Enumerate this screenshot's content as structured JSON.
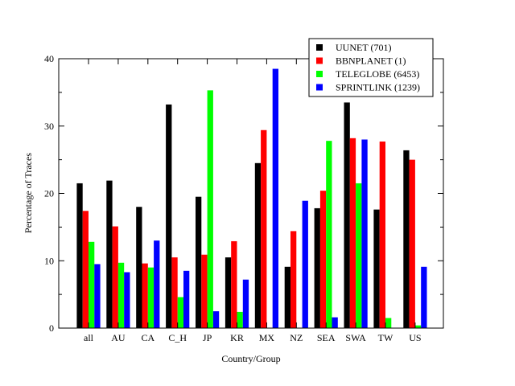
{
  "chart_data": {
    "type": "bar",
    "xlabel": "Country/Group",
    "ylabel": "Percentage of Traces",
    "ylim": [
      0,
      40
    ],
    "yticks": [
      0,
      10,
      20,
      30,
      40
    ],
    "grid": false,
    "legend_position": "top-right",
    "categories": [
      "all",
      "AU",
      "CA",
      "C_H",
      "JP",
      "KR",
      "MX",
      "NZ",
      "SEA",
      "SWA",
      "TW",
      "US"
    ],
    "series": [
      {
        "name": "UUNET (701)",
        "color": "#000000",
        "values": [
          21.5,
          21.9,
          18.0,
          33.2,
          19.5,
          10.5,
          24.5,
          9.1,
          17.8,
          33.5,
          17.6,
          26.4
        ]
      },
      {
        "name": "BBNPLANET (1)",
        "color": "#ff0000",
        "values": [
          17.4,
          15.1,
          9.6,
          10.5,
          10.9,
          12.9,
          29.4,
          14.4,
          20.4,
          28.2,
          27.7,
          25.0
        ]
      },
      {
        "name": "TELEGLOBE (6453)",
        "color": "#00ff00",
        "values": [
          12.8,
          9.7,
          9.0,
          4.6,
          35.3,
          2.4,
          0,
          0,
          27.8,
          21.5,
          1.5,
          0.4
        ]
      },
      {
        "name": "SPRINTLINK (1239)",
        "color": "#0000ff",
        "values": [
          9.5,
          8.3,
          13.0,
          8.5,
          2.5,
          7.2,
          38.5,
          18.9,
          1.6,
          28.0,
          0,
          9.1
        ]
      }
    ]
  }
}
